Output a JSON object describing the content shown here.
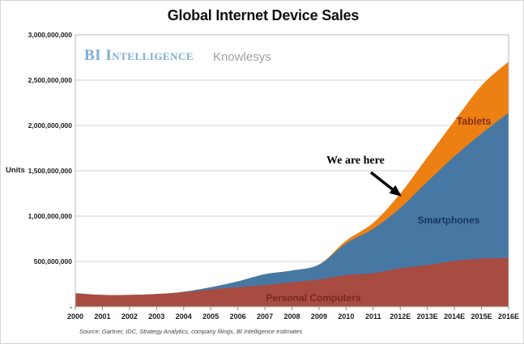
{
  "page": {
    "title": "Global Internet Device Sales"
  },
  "watermark": {
    "brand": "BI Intelligence",
    "partner": "Knowlesys"
  },
  "annotation": {
    "we_are_here": "We are here"
  },
  "y_axis": {
    "units_label": "Units"
  },
  "source_note": "Source: Gartner, IDC, Strategy Analytics, company filings, BI Intelligence estimates",
  "colors": {
    "personal_computers_fill": "#A84B41",
    "smartphones_fill": "#4778A3",
    "tablets_fill": "#EC8013",
    "gridline": "#D2D2D2",
    "plot_border": "#B8B8B8",
    "watermark_blue": "#7FADD1"
  },
  "chart_data": {
    "type": "area",
    "stacked": true,
    "title": "Global Internet Device Sales",
    "ylabel": "Units",
    "xlabel": "",
    "grid": true,
    "legend_position": "inline-area-labels",
    "values_unit": "millions of units",
    "ylim_millions": [
      0,
      3000
    ],
    "x_categories": [
      "2000",
      "2001",
      "2002",
      "2003",
      "2004",
      "2005",
      "2006",
      "2007",
      "2008",
      "2009",
      "2010",
      "2011",
      "2012E",
      "2013E",
      "2014E",
      "2015E",
      "2016E"
    ],
    "y_ticks": [
      {
        "label": "3,000,000,000",
        "millions": 3000
      },
      {
        "label": "2,500,000,000",
        "millions": 2500
      },
      {
        "label": "2,000,000,000",
        "millions": 2000
      },
      {
        "label": "1,500,000,000",
        "millions": 1500
      },
      {
        "label": "1,000,000,000",
        "millions": 1000
      },
      {
        "label": "500,000,000",
        "millions": 500
      },
      {
        "label": "-",
        "millions": 0
      }
    ],
    "series": [
      {
        "name": "Personal Computers",
        "fill": "#A84B41",
        "label_color": "#7A281A",
        "values_millions": [
          150,
          130,
          130,
          140,
          160,
          190,
          215,
          240,
          270,
          300,
          350,
          370,
          425,
          460,
          505,
          530,
          540
        ]
      },
      {
        "name": "Smartphones",
        "fill": "#4778A3",
        "label_color": "#16365C",
        "values_millions": [
          0,
          0,
          0,
          0,
          5,
          25,
          65,
          120,
          130,
          165,
          350,
          490,
          665,
          920,
          1155,
          1380,
          1600
        ]
      },
      {
        "name": "Tablets",
        "fill": "#EC8013",
        "label_color": "#8A2F1B",
        "values_millions": [
          0,
          0,
          0,
          0,
          0,
          0,
          0,
          0,
          0,
          0,
          30,
          65,
          160,
          270,
          390,
          530,
          565
        ]
      }
    ]
  }
}
